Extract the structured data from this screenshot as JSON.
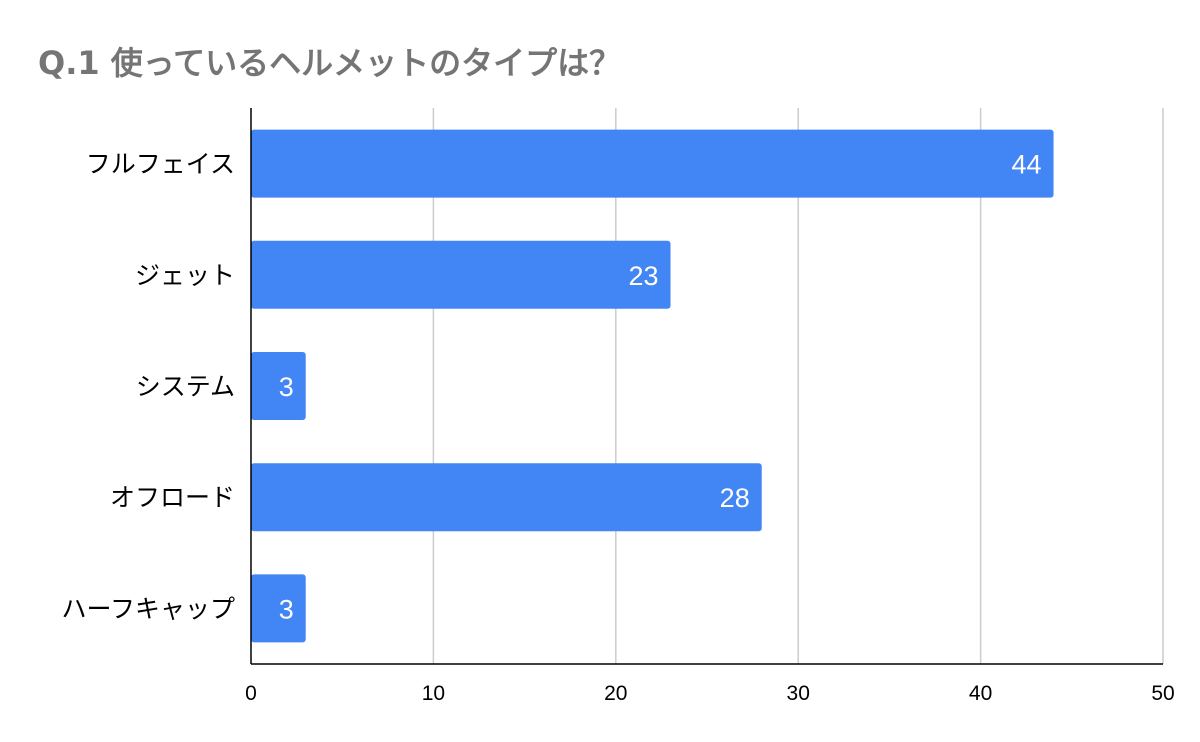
{
  "chart_data": {
    "type": "bar",
    "orientation": "horizontal",
    "title": "Q.1 使っているヘルメットのタイプは？",
    "categories": [
      "フルフェイス",
      "ジェット",
      "システム",
      "オフロード",
      "ハーフキャップ"
    ],
    "values": [
      44,
      23,
      3,
      28,
      3
    ],
    "xlim": [
      0,
      50
    ],
    "xticks": [
      0,
      10,
      20,
      30,
      40,
      50
    ],
    "grid": true,
    "legend": "none",
    "bar_color": "#4285f4",
    "data_labels": true
  }
}
